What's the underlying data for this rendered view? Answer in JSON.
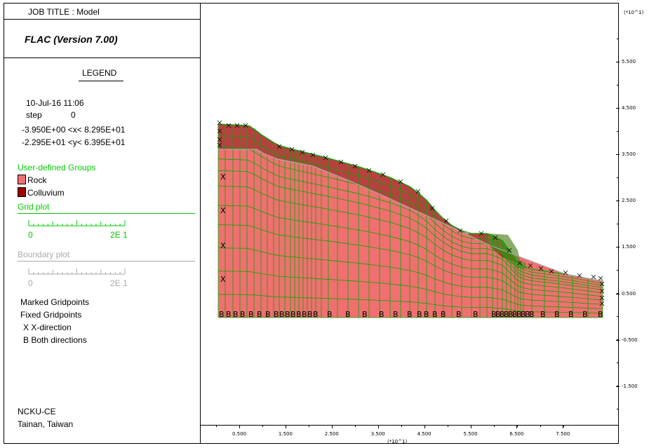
{
  "job_title": "JOB TITLE : Model",
  "program_title": "FLAC (Version 7.00)",
  "legend": {
    "heading": "LEGEND",
    "date_time": "10-Jul-16  11:06",
    "step_label": "step",
    "step_value": "0",
    "x_range": "-3.950E+00 <x<  8.295E+01",
    "y_range": "-2.295E+01 <y<  6.395E+01",
    "groups_heading": "User-defined Groups",
    "groups": [
      {
        "label": "Rock",
        "color": "#f07070"
      },
      {
        "label": "Colluvium",
        "color": "#a00000"
      }
    ],
    "grid_plot": {
      "heading": "Grid plot",
      "scale_min": "0",
      "scale_max": "2E  1",
      "color": "#00cc00"
    },
    "boundary_plot": {
      "heading": "Boundary plot",
      "scale_min": "0",
      "scale_max": "2E  1",
      "color": "#aaaaaa"
    },
    "marked_gridpoints": "Marked Gridpoints",
    "fixed_gridpoints": "Fixed Gridpoints",
    "x_direction": "X  X-direction",
    "both_directions": "B  Both directions",
    "institution": "NCKU-CE",
    "location": "Tainan, Taiwan"
  },
  "axes": {
    "x_ticks": [
      "0.500",
      "1.500",
      "2.500",
      "3.500",
      "4.500",
      "5.500",
      "6.500",
      "7.500"
    ],
    "x_multiplier": "(*10^1)",
    "y_ticks": [
      "5.500",
      "4.500",
      "3.500",
      "2.500",
      "1.500",
      "0.500",
      "-0.500",
      "-1.500"
    ],
    "y_multiplier": "(*10^1)"
  },
  "markers": {
    "x": "X",
    "b": "B"
  },
  "colors": {
    "rock": "#f07070",
    "colluvium": "#a00000",
    "grid": "#00aa00",
    "boundary": "#aaaaaa"
  }
}
